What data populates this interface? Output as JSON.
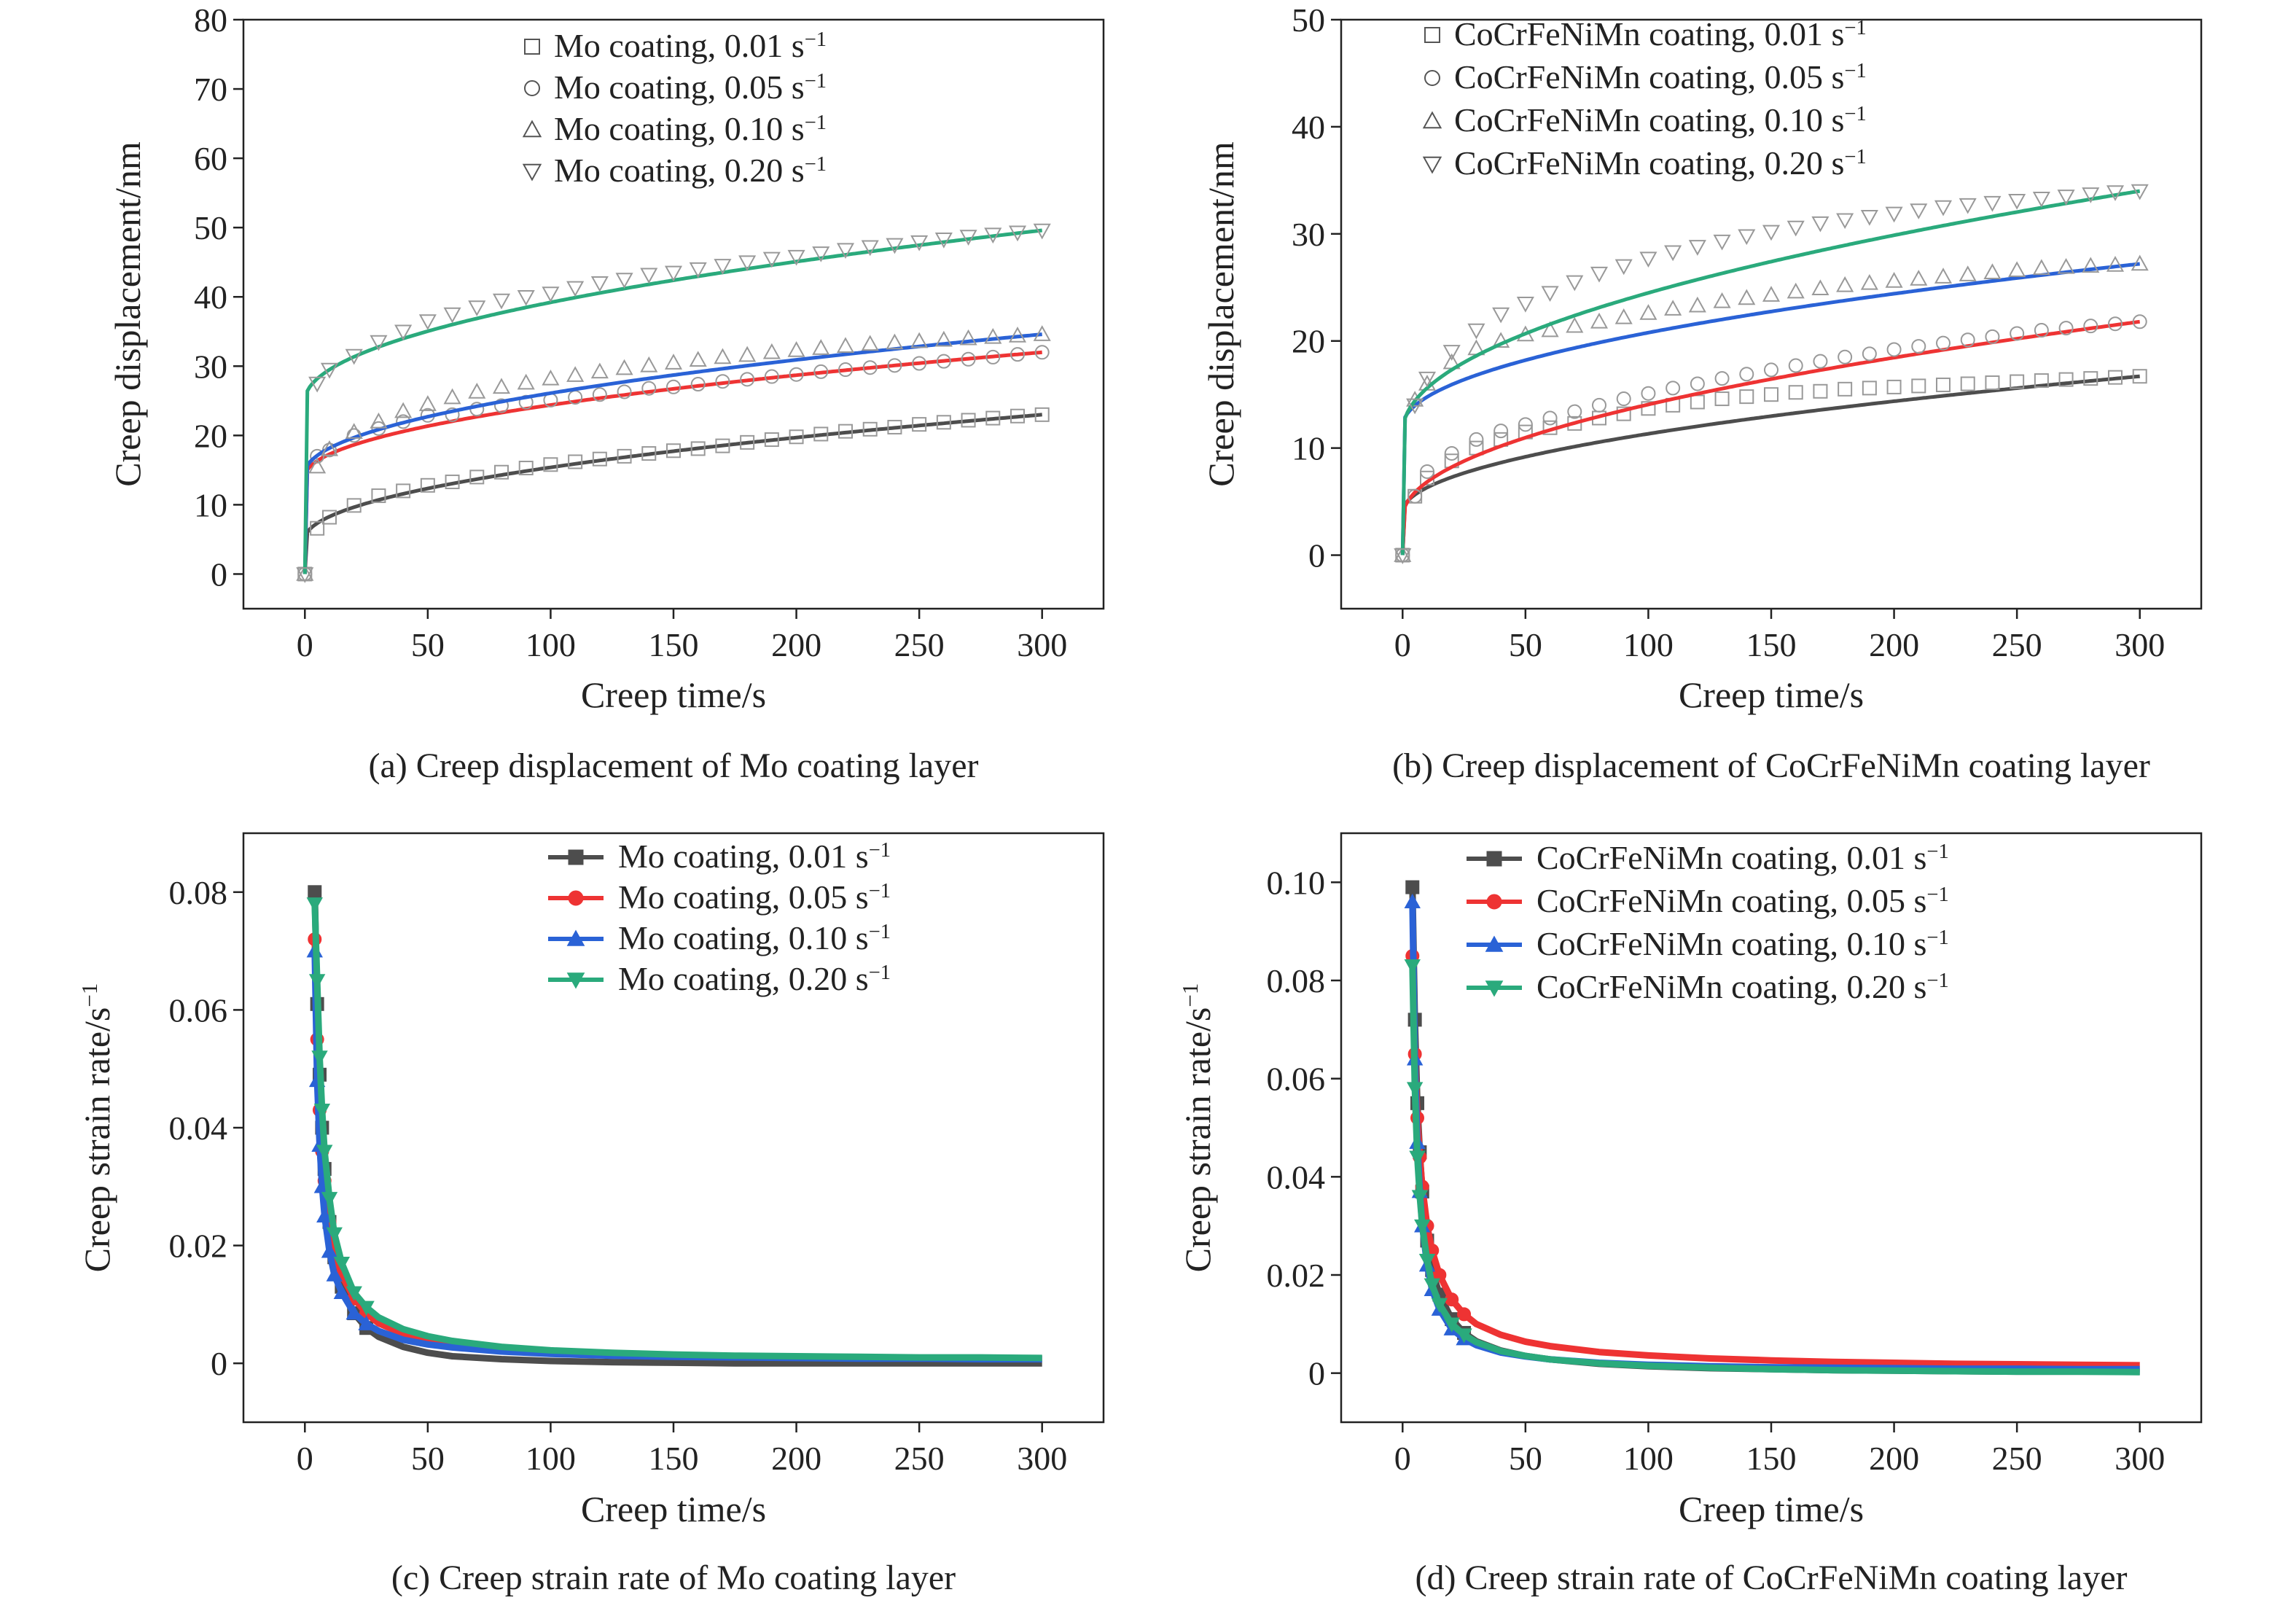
{
  "colors": {
    "s001": "#4d4d4d",
    "s005": "#ee3333",
    "s010": "#2a62d6",
    "s020": "#2aaa7c",
    "marker_hollow": "#999999",
    "axis": "#222222"
  },
  "chart_data": [
    {
      "id": "a",
      "type": "scatter",
      "caption": "(a) Creep displacement of Mo coating layer",
      "xlabel": "Creep time/s",
      "ylabel": "Creep displacement/nm",
      "xlim": [
        -25,
        325
      ],
      "ylim": [
        -5,
        80
      ],
      "xticks": [
        "0",
        "50",
        "100",
        "150",
        "200",
        "250",
        "300"
      ],
      "yticks": [
        "0",
        "10",
        "20",
        "30",
        "40",
        "50",
        "60",
        "70",
        "80"
      ],
      "legend_position": "top-center",
      "marker_style": "hollow",
      "fit": {
        "a": [
          5.0,
          14.0,
          14.5,
          25.0
        ],
        "k": [
          0.26,
          0.145,
          0.165,
          0.115
        ],
        "exponent": 0.5
      },
      "x": [
        0,
        5,
        10,
        20,
        30,
        40,
        50,
        60,
        70,
        80,
        90,
        100,
        110,
        120,
        130,
        140,
        150,
        160,
        170,
        180,
        190,
        200,
        210,
        220,
        230,
        240,
        250,
        260,
        270,
        280,
        290,
        300
      ],
      "series": [
        {
          "name": "Mo coating, 0.01 s⁻¹",
          "marker": "square",
          "color_key": "s001",
          "values": [
            0,
            6.6,
            8.2,
            9.9,
            11.3,
            12.0,
            12.8,
            13.3,
            14.0,
            14.7,
            15.3,
            15.8,
            16.2,
            16.6,
            17.0,
            17.4,
            17.8,
            18.1,
            18.5,
            19.0,
            19.4,
            19.8,
            20.2,
            20.6,
            20.9,
            21.2,
            21.6,
            21.9,
            22.2,
            22.5,
            22.8,
            23.0
          ]
        },
        {
          "name": "Mo coating, 0.05 s⁻¹",
          "marker": "circle",
          "color_key": "s005",
          "values": [
            0,
            17.0,
            17.9,
            20.0,
            21.0,
            22.0,
            22.9,
            23.0,
            23.8,
            24.3,
            24.8,
            25.1,
            25.5,
            25.9,
            26.3,
            26.8,
            27.0,
            27.4,
            27.8,
            28.1,
            28.5,
            28.8,
            29.2,
            29.5,
            29.8,
            30.1,
            30.4,
            30.7,
            31.0,
            31.3,
            31.7,
            32.0
          ]
        },
        {
          "name": "Mo coating, 0.10 s⁻¹",
          "marker": "triangle-up",
          "color_key": "s010",
          "values": [
            0,
            15.5,
            18.0,
            20.5,
            22.0,
            23.5,
            24.5,
            25.5,
            26.3,
            27.0,
            27.6,
            28.2,
            28.7,
            29.2,
            29.7,
            30.1,
            30.5,
            30.9,
            31.3,
            31.6,
            32.0,
            32.3,
            32.6,
            32.9,
            33.2,
            33.4,
            33.6,
            33.8,
            34.0,
            34.2,
            34.4,
            34.6
          ]
        },
        {
          "name": "Mo coating, 0.20 s⁻¹",
          "marker": "triangle-down",
          "color_key": "s020",
          "values": [
            0,
            27.5,
            29.5,
            31.5,
            33.5,
            35.0,
            36.5,
            37.5,
            38.5,
            39.5,
            40.0,
            40.5,
            41.3,
            42.0,
            42.5,
            43.2,
            43.5,
            44.0,
            44.5,
            45.0,
            45.5,
            45.8,
            46.3,
            46.8,
            47.2,
            47.5,
            47.9,
            48.3,
            48.7,
            49.0,
            49.3,
            49.6
          ]
        }
      ]
    },
    {
      "id": "b",
      "type": "scatter",
      "caption": "(b) Creep displacement of CoCrFeNiMn coating layer",
      "xlabel": "Creep time/s",
      "ylabel": "Creep displacement/nm",
      "xlim": [
        -25,
        325
      ],
      "ylim": [
        -5,
        50
      ],
      "xticks": [
        "0",
        "50",
        "100",
        "150",
        "200",
        "250",
        "300"
      ],
      "yticks": [
        "0",
        "10",
        "20",
        "30",
        "40",
        "50"
      ],
      "legend_position": "top-center",
      "marker_style": "hollow",
      "fit": {
        "a": [
          4.0,
          3.5,
          12.0,
          11.5
        ],
        "k": [
          0.19,
          0.23,
          0.3,
          0.55
        ],
        "exponent": 0.5
      },
      "x": [
        0,
        5,
        10,
        20,
        30,
        40,
        50,
        60,
        70,
        80,
        90,
        100,
        110,
        120,
        130,
        140,
        150,
        160,
        170,
        180,
        190,
        200,
        210,
        220,
        230,
        240,
        250,
        260,
        270,
        280,
        290,
        300
      ],
      "series": [
        {
          "name": "CoCrFeNiMn coating, 0.01 s⁻¹",
          "marker": "square",
          "color_key": "s001",
          "values": [
            0,
            5.5,
            7.2,
            8.8,
            10.0,
            10.8,
            11.5,
            11.9,
            12.3,
            12.8,
            13.2,
            13.7,
            14.0,
            14.3,
            14.6,
            14.8,
            15.0,
            15.2,
            15.3,
            15.5,
            15.6,
            15.7,
            15.8,
            15.9,
            16.0,
            16.1,
            16.2,
            16.3,
            16.4,
            16.5,
            16.6,
            16.7
          ]
        },
        {
          "name": "CoCrFeNiMn coating, 0.05 s⁻¹",
          "marker": "circle",
          "color_key": "s005",
          "values": [
            0,
            5.5,
            7.8,
            9.5,
            10.8,
            11.6,
            12.2,
            12.8,
            13.4,
            14.0,
            14.6,
            15.1,
            15.6,
            16.0,
            16.5,
            16.9,
            17.3,
            17.7,
            18.1,
            18.5,
            18.8,
            19.2,
            19.5,
            19.8,
            20.1,
            20.4,
            20.7,
            21.0,
            21.2,
            21.4,
            21.6,
            21.8
          ]
        },
        {
          "name": "CoCrFeNiMn coating, 0.10 s⁻¹",
          "marker": "triangle-up",
          "color_key": "s010",
          "values": [
            0,
            14.5,
            16.0,
            18.0,
            19.3,
            20.0,
            20.6,
            21.0,
            21.4,
            21.8,
            22.2,
            22.6,
            23.0,
            23.3,
            23.7,
            24.0,
            24.3,
            24.6,
            24.9,
            25.2,
            25.4,
            25.6,
            25.8,
            26.0,
            26.2,
            26.4,
            26.6,
            26.8,
            26.9,
            27.0,
            27.1,
            27.2
          ]
        },
        {
          "name": "CoCrFeNiMn coating, 0.20 s⁻¹",
          "marker": "triangle-down",
          "color_key": "s020",
          "values": [
            0,
            14.0,
            16.5,
            19.0,
            21.0,
            22.5,
            23.5,
            24.5,
            25.5,
            26.3,
            27.0,
            27.7,
            28.3,
            28.8,
            29.3,
            29.8,
            30.2,
            30.6,
            31.0,
            31.3,
            31.6,
            31.9,
            32.2,
            32.5,
            32.7,
            32.9,
            33.1,
            33.3,
            33.5,
            33.7,
            33.9,
            34.0
          ]
        }
      ]
    },
    {
      "id": "c",
      "type": "line",
      "caption": "(c) Creep strain rate of Mo coating layer",
      "xlabel": "Creep time/s",
      "ylabel": "Creep strain rate/s⁻¹",
      "xlim": [
        -25,
        325
      ],
      "ylim": [
        -0.01,
        0.09
      ],
      "xticks": [
        "0",
        "50",
        "100",
        "150",
        "200",
        "250",
        "300"
      ],
      "yticks": [
        "0",
        "0.02",
        "0.04",
        "0.06",
        "0.08"
      ],
      "legend_position": "top-center",
      "marker_style": "filled",
      "x": [
        4,
        5,
        6,
        7,
        8,
        10,
        12,
        15,
        20,
        25,
        30,
        40,
        50,
        60,
        80,
        100,
        125,
        150,
        175,
        200,
        225,
        250,
        275,
        300
      ],
      "series": [
        {
          "name": "Mo coating, 0.01 s⁻¹",
          "marker": "square",
          "color_key": "s001",
          "values": [
            0.08,
            0.061,
            0.049,
            0.04,
            0.033,
            0.024,
            0.018,
            0.013,
            0.0085,
            0.006,
            0.0045,
            0.0028,
            0.0018,
            0.0012,
            0.0007,
            0.0004,
            0.0002,
            0.0001,
            0.0,
            0.0,
            0.0,
            0.0,
            0.0,
            0.0
          ]
        },
        {
          "name": "Mo coating, 0.05 s⁻¹",
          "marker": "circle",
          "color_key": "s005",
          "values": [
            0.072,
            0.055,
            0.043,
            0.036,
            0.031,
            0.024,
            0.019,
            0.015,
            0.011,
            0.0085,
            0.0068,
            0.005,
            0.004,
            0.0033,
            0.0024,
            0.0019,
            0.0015,
            0.0013,
            0.0011,
            0.001,
            0.0009,
            0.0009,
            0.0008,
            0.0008
          ]
        },
        {
          "name": "Mo coating, 0.10 s⁻¹",
          "marker": "triangle-up",
          "color_key": "s010",
          "values": [
            0.07,
            0.048,
            0.037,
            0.03,
            0.025,
            0.019,
            0.015,
            0.012,
            0.0085,
            0.0067,
            0.0055,
            0.004,
            0.0032,
            0.0027,
            0.002,
            0.0016,
            0.0013,
            0.0011,
            0.001,
            0.0009,
            0.0008,
            0.0008,
            0.0007,
            0.0007
          ]
        },
        {
          "name": "Mo coating, 0.20 s⁻¹",
          "marker": "triangle-down",
          "color_key": "s020",
          "values": [
            0.078,
            0.065,
            0.052,
            0.043,
            0.036,
            0.028,
            0.022,
            0.017,
            0.012,
            0.0095,
            0.0078,
            0.0058,
            0.0046,
            0.0038,
            0.0028,
            0.0022,
            0.0018,
            0.0015,
            0.0013,
            0.0012,
            0.0011,
            0.001,
            0.001,
            0.0009
          ]
        }
      ]
    },
    {
      "id": "d",
      "type": "line",
      "caption": "(d) Creep strain rate of CoCrFeNiMn coating layer",
      "xlabel": "Creep time/s",
      "ylabel": "Creep strain rate/s⁻¹",
      "xlim": [
        -25,
        325
      ],
      "ylim": [
        -0.01,
        0.11
      ],
      "xticks": [
        "0",
        "50",
        "100",
        "150",
        "200",
        "250",
        "300"
      ],
      "yticks": [
        "0",
        "0.02",
        "0.04",
        "0.06",
        "0.08",
        "0.10"
      ],
      "legend_position": "top-center",
      "marker_style": "filled",
      "x": [
        4,
        5,
        6,
        7,
        8,
        10,
        12,
        15,
        20,
        25,
        30,
        40,
        50,
        60,
        80,
        100,
        125,
        150,
        175,
        200,
        225,
        250,
        275,
        300
      ],
      "series": [
        {
          "name": "CoCrFeNiMn coating, 0.01 s⁻¹",
          "marker": "square",
          "color_key": "s001",
          "values": [
            0.099,
            0.072,
            0.055,
            0.045,
            0.037,
            0.027,
            0.021,
            0.016,
            0.011,
            0.0082,
            0.0065,
            0.0046,
            0.0035,
            0.0028,
            0.0019,
            0.0014,
            0.001,
            0.0008,
            0.0006,
            0.0005,
            0.0004,
            0.0003,
            0.0003,
            0.0003
          ]
        },
        {
          "name": "CoCrFeNiMn coating, 0.05 s⁻¹",
          "marker": "circle",
          "color_key": "s005",
          "values": [
            0.085,
            0.065,
            0.052,
            0.044,
            0.038,
            0.03,
            0.025,
            0.02,
            0.015,
            0.012,
            0.01,
            0.0078,
            0.0064,
            0.0055,
            0.0043,
            0.0036,
            0.003,
            0.0026,
            0.0023,
            0.0021,
            0.0019,
            0.0018,
            0.0017,
            0.0016
          ]
        },
        {
          "name": "CoCrFeNiMn coating, 0.10 s⁻¹",
          "marker": "triangle-up",
          "color_key": "s010",
          "values": [
            0.096,
            0.064,
            0.047,
            0.037,
            0.03,
            0.022,
            0.017,
            0.013,
            0.009,
            0.007,
            0.0057,
            0.0042,
            0.0034,
            0.0028,
            0.0021,
            0.0017,
            0.0014,
            0.0012,
            0.0011,
            0.001,
            0.0009,
            0.0009,
            0.0008,
            0.0008
          ]
        },
        {
          "name": "CoCrFeNiMn coating, 0.20 s⁻¹",
          "marker": "triangle-down",
          "color_key": "s020",
          "values": [
            0.083,
            0.058,
            0.044,
            0.036,
            0.03,
            0.023,
            0.018,
            0.014,
            0.01,
            0.0078,
            0.0063,
            0.0045,
            0.0035,
            0.0028,
            0.002,
            0.0015,
            0.0011,
            0.0008,
            0.0006,
            0.0005,
            0.0004,
            0.0003,
            0.0003,
            0.0002
          ]
        }
      ]
    }
  ]
}
